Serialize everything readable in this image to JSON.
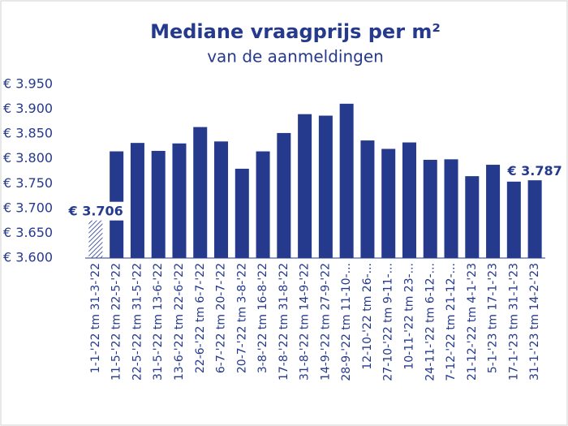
{
  "chart_data": {
    "type": "bar",
    "title": "Mediane vraagprijs per m²",
    "subtitle": "van de aanmeldingen",
    "categories": [
      "1-1-'22 tm 31-3-'22",
      "11-5-'22 tm 22-5-'22",
      "22-5-'22 tm 31-5-'22",
      "31-5-'22 tm 13-6-'22",
      "13-6-'22 tm 22-6-'22",
      "22-6-'22 tm 6-7-'22",
      "6-7-'22 tm 20-7-'22",
      "20-7-'22 tm 3-8-'22",
      "3-8-'22 tm 16-8-'22",
      "17-8-'22 tm 31-8-'22",
      "31-8-'22 tm 14-9-'22",
      "14-9-'22 tm 27-9-'22",
      "28-9-'22 tm 11-10-...",
      "12-10-'22 tm 26-...",
      "27-10-'22 tm 9-11-...",
      "10-11-'22 tm 23-...",
      "24-11-'22 tm 6-12-...",
      "7-12-'22 tm 21-12-...",
      "21-12-'22 tm 4-1-'23",
      "5-1-'23 tm 17-1-'23",
      "17-1-'23 tm 31-1-'23",
      "31-1-'23 tm 14-2-'23"
    ],
    "values": [
      3706,
      3815,
      3832,
      3816,
      3831,
      3864,
      3835,
      3780,
      3815,
      3852,
      3890,
      3887,
      3911,
      3837,
      3820,
      3833,
      3798,
      3799,
      3765,
      3788,
      3754,
      3787
    ],
    "value_labels": [
      "€ 3.706",
      null,
      null,
      null,
      null,
      null,
      null,
      null,
      null,
      null,
      null,
      null,
      null,
      null,
      null,
      null,
      null,
      null,
      null,
      null,
      null,
      "€ 3.787"
    ],
    "hatched": [
      0
    ],
    "color": "#253a8c",
    "ylim": [
      3600,
      3950
    ],
    "yticks": [
      {
        "value": 3600,
        "label": "€ 3.600"
      },
      {
        "value": 3650,
        "label": "€ 3.650"
      },
      {
        "value": 3700,
        "label": "€ 3.700"
      },
      {
        "value": 3750,
        "label": "€ 3.750"
      },
      {
        "value": 3800,
        "label": "€ 3.800"
      },
      {
        "value": 3850,
        "label": "€ 3.850"
      },
      {
        "value": 3900,
        "label": "€ 3.900"
      },
      {
        "value": 3950,
        "label": "€ 3.950"
      }
    ],
    "grid": false
  }
}
